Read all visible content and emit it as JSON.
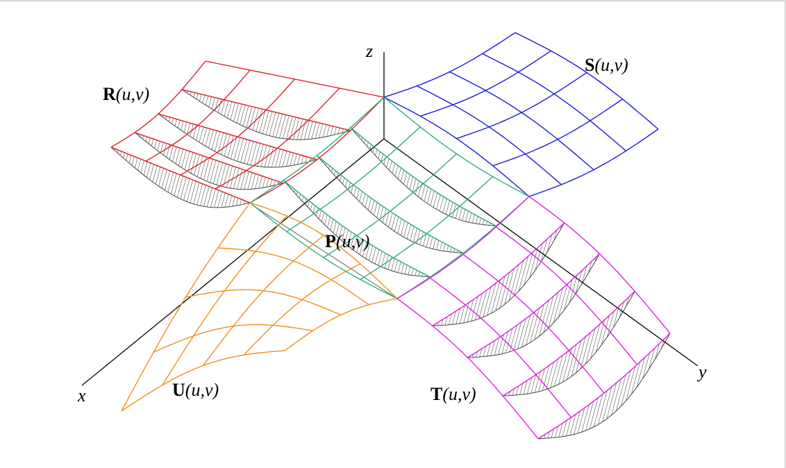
{
  "axes": {
    "x": "x",
    "y": "y",
    "z": "z"
  },
  "surfaces": [
    {
      "name": "R",
      "params": "(u,v)"
    },
    {
      "name": "S",
      "params": "(u,v)"
    },
    {
      "name": "P",
      "params": "(u,v)"
    },
    {
      "name": "U",
      "params": "(u,v)"
    },
    {
      "name": "T",
      "params": "(u,v)"
    }
  ]
}
